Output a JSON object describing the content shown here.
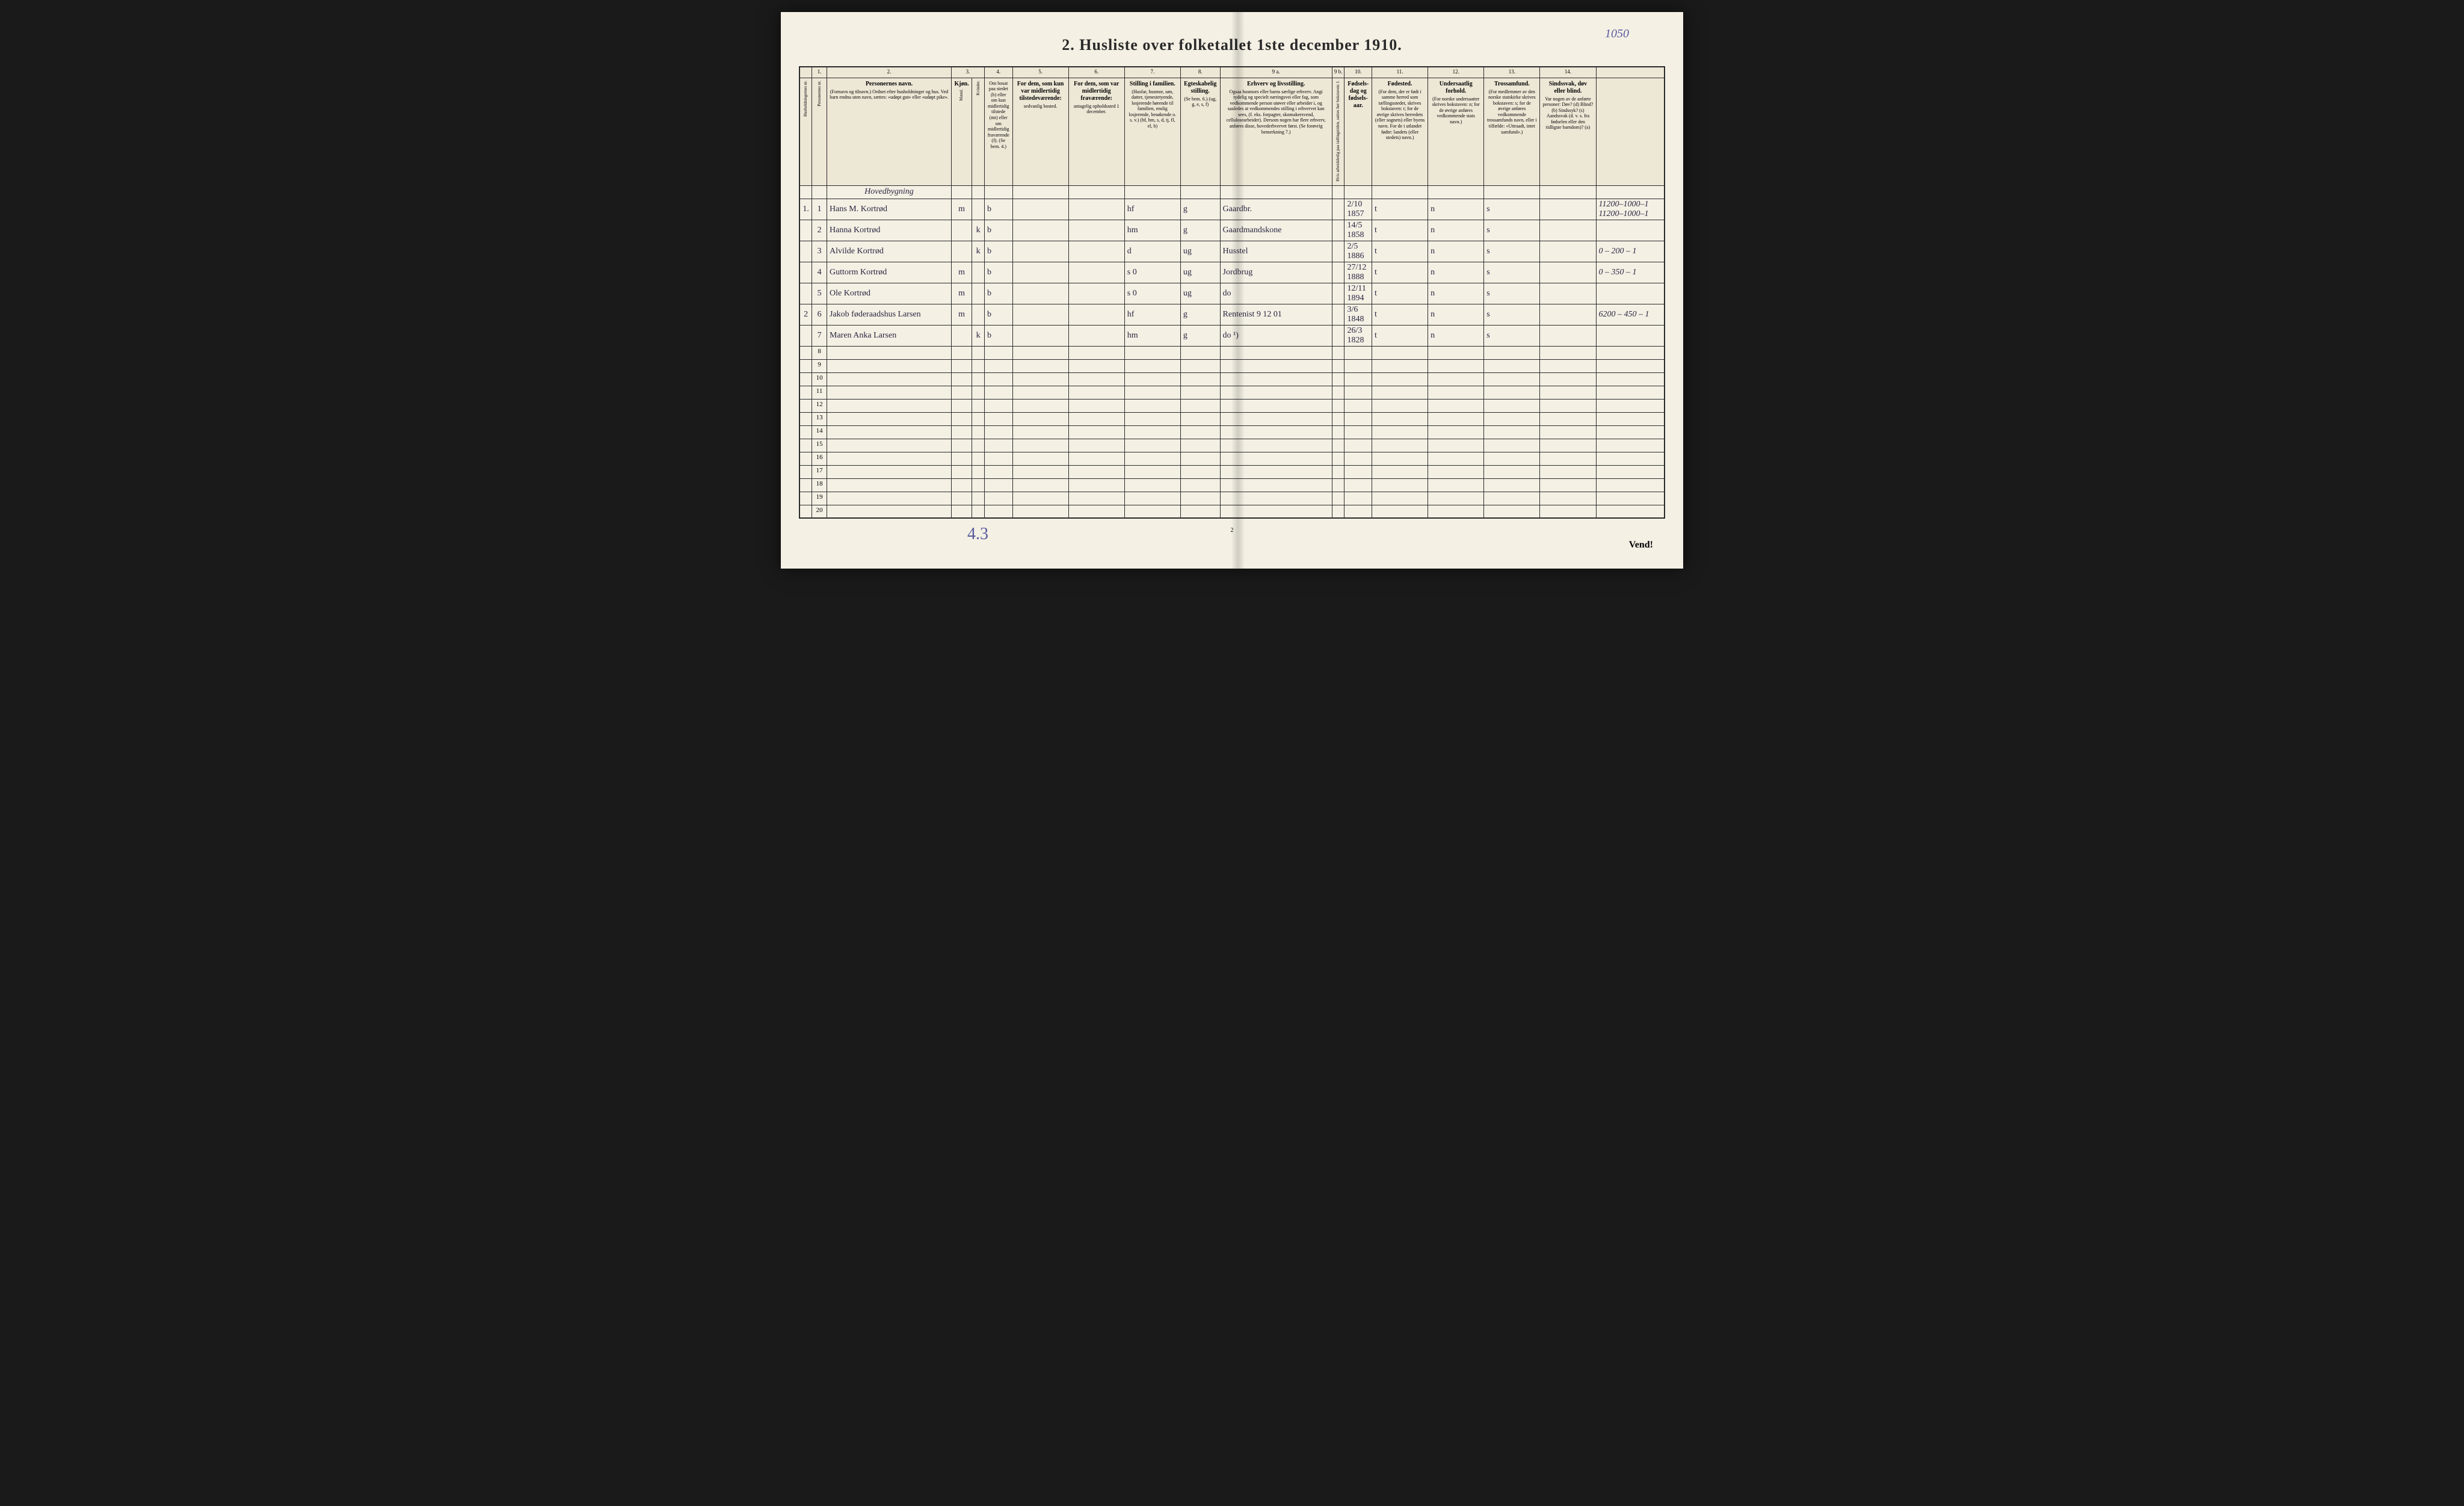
{
  "document": {
    "title": "2.  Husliste over folketallet 1ste december 1910.",
    "top_margin_note": "1050",
    "bottom_note": "4.3",
    "vend_label": "Vend!",
    "page_number_bottom": "2"
  },
  "table": {
    "column_numbers": [
      "",
      "1.",
      "2.",
      "3.",
      "",
      "4.",
      "5.",
      "6.",
      "7.",
      "8.",
      "9 a.",
      "9 b.",
      "10.",
      "11.",
      "12.",
      "13.",
      "14.",
      ""
    ],
    "headers": {
      "husholdning": "Husholdningernes nr.",
      "person_nr": "Personernes nr.",
      "col2": {
        "main": "Personernes navn.",
        "sub": "(Fornavn og tilnavn.)\nOrdnet efter husholdninger og hus.\nVed barn endnu uten navn, sættes: «udøpt gut» eller «udøpt pike»."
      },
      "col3": {
        "main": "Kjøn.",
        "sub_m": "Mænd.",
        "sub_k": "Kvinder.",
        "mk": "m.  k."
      },
      "col4": {
        "main": "Om bosat paa stedet",
        "sub": "(b) eller om kun midlertidig tilstede (mt) eller om midlertidig fraværende (f).\n(Se bem. 4.)"
      },
      "col5": {
        "main": "For dem, som kun var midlertidig tilstedeværende:",
        "sub": "sedvanlig bosted."
      },
      "col6": {
        "main": "For dem, som var midlertidig fraværende:",
        "sub": "antagelig opholdssted 1 december."
      },
      "col7": {
        "main": "Stilling i familien.",
        "sub": "(Husfar, husmor, søn, datter, tjenestetyende, losjerende hørende til familien, enslig losjerende, besøkende o. s. v.)\n(hf, hm, s, d, tj, fl, el, b)"
      },
      "col8": {
        "main": "Egteskabelig stilling.",
        "sub": "(Se bem. 6.)\n(ug, g, e, s, f)"
      },
      "col9a": {
        "main": "Erhverv og livsstilling.",
        "sub": "Ogsaa husmors eller barns særlige erhverv.\nAngi tydelig og specielt næringsvei eller fag, som vedkommende person utøver eller arbeider i, og saaledes at vedkommendes stilling i erhvervet kan sees, (f. eks. forpagter, skomakersvend, cellulosearbeider). Dersom nogen har flere erhverv, anføres disse, hovederhvervet først.\n(Se forøvrig bemerkning 7.)"
      },
      "col9b": "Hvis arbeidsledig paa tællingstiden, sættes her bokstaven: l.",
      "col10": {
        "main": "Fødsels-dag og fødsels-aar."
      },
      "col11": {
        "main": "Fødested.",
        "sub": "(For dem, der er født i samme herred som tællingsstedet, skrives bokstaven: t; for de øvrige skrives herredets (eller sognets) eller byens navn.\nFor de i utlandet fødte: landets (eller stedets) navn.)"
      },
      "col12": {
        "main": "Undersaatlig forhold.",
        "sub": "(For norske undersaatter skrives bokstaven: n; for de øvrige anføres vedkommende stats navn.)"
      },
      "col13": {
        "main": "Trossamfund.",
        "sub": "(For medlemmer av den norske statskirke skrives bokstaven: s; for de øvrige anføres vedkommende trossamfunds navn, eller i tilfælde: «Uttraadt, intet samfund».)"
      },
      "col14": {
        "main": "Sindssvak, døv eller blind.",
        "sub": "Var nogen av de anførte personer:\nDøv?      (d)\nBlind?    (b)\nSindssyk? (s)\nAandssvak (d. v. s. fra fødselen eller den tidligste barndom)? (a)"
      }
    },
    "section_heading": "Hovedbygning",
    "rows": [
      {
        "husholdning": "1.",
        "person_nr": "1",
        "name": "Hans M. Kortrød",
        "sex_m": "m",
        "sex_k": "",
        "bosat": "b",
        "col5": "",
        "col6": "",
        "stilling_fam": "hf",
        "egte": "g",
        "erhverv": "Gaardbr.",
        "col9b": "",
        "fodselsdato": "2/10 1857",
        "fodested": "t",
        "undersaat": "n",
        "tros": "s",
        "col14": "",
        "margin_note": "11200–1000–1\n11200–1000–1"
      },
      {
        "husholdning": "",
        "person_nr": "2",
        "name": "Hanna   Kortrød",
        "sex_m": "",
        "sex_k": "k",
        "bosat": "b",
        "col5": "",
        "col6": "",
        "stilling_fam": "hm",
        "egte": "g",
        "erhverv": "Gaardmandskone",
        "col9b": "",
        "fodselsdato": "14/5 1858",
        "fodested": "t",
        "undersaat": "n",
        "tros": "s",
        "col14": "",
        "margin_note": ""
      },
      {
        "husholdning": "",
        "person_nr": "3",
        "name": "Alvilde   Kortrød",
        "sex_m": "",
        "sex_k": "k",
        "bosat": "b",
        "col5": "",
        "col6": "",
        "stilling_fam": "d",
        "egte": "ug",
        "erhverv": "Husstel",
        "col9b": "",
        "fodselsdato": "2/5 1886",
        "fodested": "t",
        "undersaat": "n",
        "tros": "s",
        "col14": "",
        "margin_note": "0 – 200 – 1"
      },
      {
        "husholdning": "",
        "person_nr": "4",
        "name": "Guttorm  Kortrød",
        "sex_m": "m",
        "sex_k": "",
        "bosat": "b",
        "col5": "",
        "col6": "",
        "stilling_fam": "s   0",
        "egte": "ug",
        "erhverv": "Jordbrug",
        "col9b": "",
        "fodselsdato": "27/12 1888",
        "fodested": "t",
        "undersaat": "n",
        "tros": "s",
        "col14": "",
        "margin_note": "0 – 350 – 1"
      },
      {
        "husholdning": "",
        "person_nr": "5",
        "name": "Ole        Kortrød",
        "sex_m": "m",
        "sex_k": "",
        "bosat": "b",
        "col5": "",
        "col6": "",
        "stilling_fam": "s   0",
        "egte": "ug",
        "erhverv": "do",
        "col9b": "",
        "fodselsdato": "12/11 1894",
        "fodested": "t",
        "undersaat": "n",
        "tros": "s",
        "col14": "",
        "margin_note": ""
      },
      {
        "husholdning": "2",
        "person_nr": "6",
        "name": "Jakob  føderaadshus  Larsen",
        "sex_m": "m",
        "sex_k": "",
        "bosat": "b",
        "col5": "",
        "col6": "",
        "stilling_fam": "hf",
        "egte": "g",
        "erhverv": "Rentenist   9 12 01",
        "col9b": "",
        "fodselsdato": "3/6 1848",
        "fodested": "t",
        "undersaat": "n",
        "tros": "s",
        "col14": "",
        "margin_note": "6200 – 450 – 1"
      },
      {
        "husholdning": "",
        "person_nr": "7",
        "name": "Maren Anka  Larsen",
        "sex_m": "",
        "sex_k": "k",
        "bosat": "b",
        "col5": "",
        "col6": "",
        "stilling_fam": "hm",
        "egte": "g",
        "erhverv": "do        ¹)",
        "col9b": "",
        "fodselsdato": "26/3 1828",
        "fodested": "t",
        "undersaat": "n",
        "tros": "s",
        "col14": "",
        "margin_note": ""
      }
    ],
    "empty_row_numbers": [
      "8",
      "9",
      "10",
      "11",
      "12",
      "13",
      "14",
      "15",
      "16",
      "17",
      "18",
      "19",
      "20"
    ]
  },
  "style": {
    "page_bg": "#f4f0e4",
    "ink": "#2a2a2a",
    "handwriting_color": "#2a2540",
    "pencil_color": "#888888",
    "blue_ink": "#5a5aa0"
  }
}
